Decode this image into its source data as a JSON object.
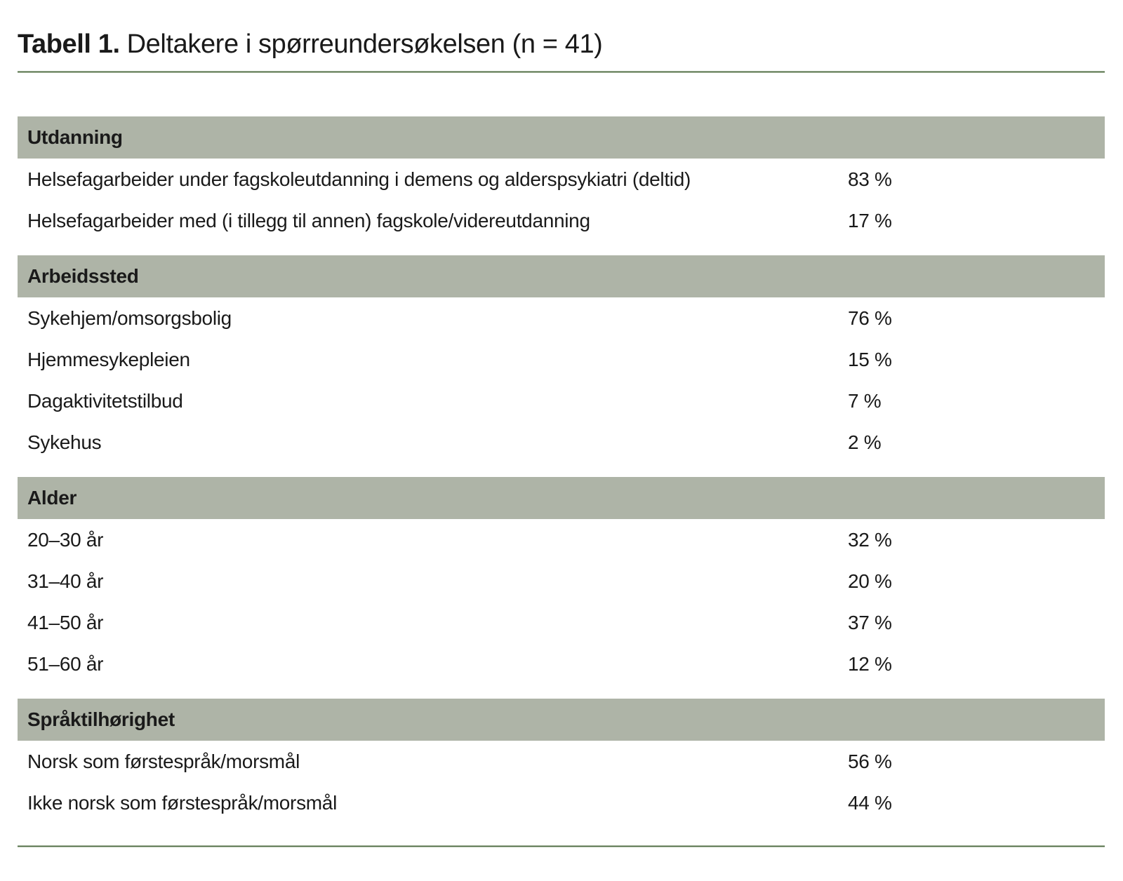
{
  "title": {
    "label": "Tabell 1.",
    "caption": "Deltakere i spørreundersøkelsen (n = 41)"
  },
  "colors": {
    "band_bg": "#aeb4a7",
    "rule_green": "#4e6b45",
    "rule_edge": "#a9b8a0",
    "text": "#1a1a1a",
    "page_bg": "#ffffff"
  },
  "chart_data": {
    "type": "table",
    "title": "Tabell 1. Deltakere i spørreundersøkelsen (n = 41)",
    "n": 41,
    "value_unit": "%",
    "sections": [
      {
        "header": "Utdanning",
        "rows": [
          {
            "label": "Helsefagarbeider under fagskoleutdanning i demens og alderspsykiatri (deltid)",
            "value": "83 %",
            "value_num": 83
          },
          {
            "label": "Helsefagarbeider med (i tillegg til annen) fagskole/videreutdanning",
            "value": "17 %",
            "value_num": 17
          }
        ]
      },
      {
        "header": "Arbeidssted",
        "rows": [
          {
            "label": "Sykehjem/omsorgsbolig",
            "value": "76 %",
            "value_num": 76
          },
          {
            "label": "Hjemmesykepleien",
            "value": "15 %",
            "value_num": 15
          },
          {
            "label": "Dagaktivitetstilbud",
            "value": "7 %",
            "value_num": 7
          },
          {
            "label": "Sykehus",
            "value": "2 %",
            "value_num": 2
          }
        ]
      },
      {
        "header": "Alder",
        "rows": [
          {
            "label": "20–30 år",
            "value": "32 %",
            "value_num": 32
          },
          {
            "label": "31–40 år",
            "value": "20 %",
            "value_num": 20
          },
          {
            "label": "41–50 år",
            "value": "37 %",
            "value_num": 37
          },
          {
            "label": "51–60 år",
            "value": "12 %",
            "value_num": 12
          }
        ]
      },
      {
        "header": "Språktilhørighet",
        "rows": [
          {
            "label": "Norsk som førstespråk/morsmål",
            "value": "56 %",
            "value_num": 56
          },
          {
            "label": "Ikke norsk som førstespråk/morsmål",
            "value": "44 %",
            "value_num": 44
          }
        ]
      }
    ]
  }
}
